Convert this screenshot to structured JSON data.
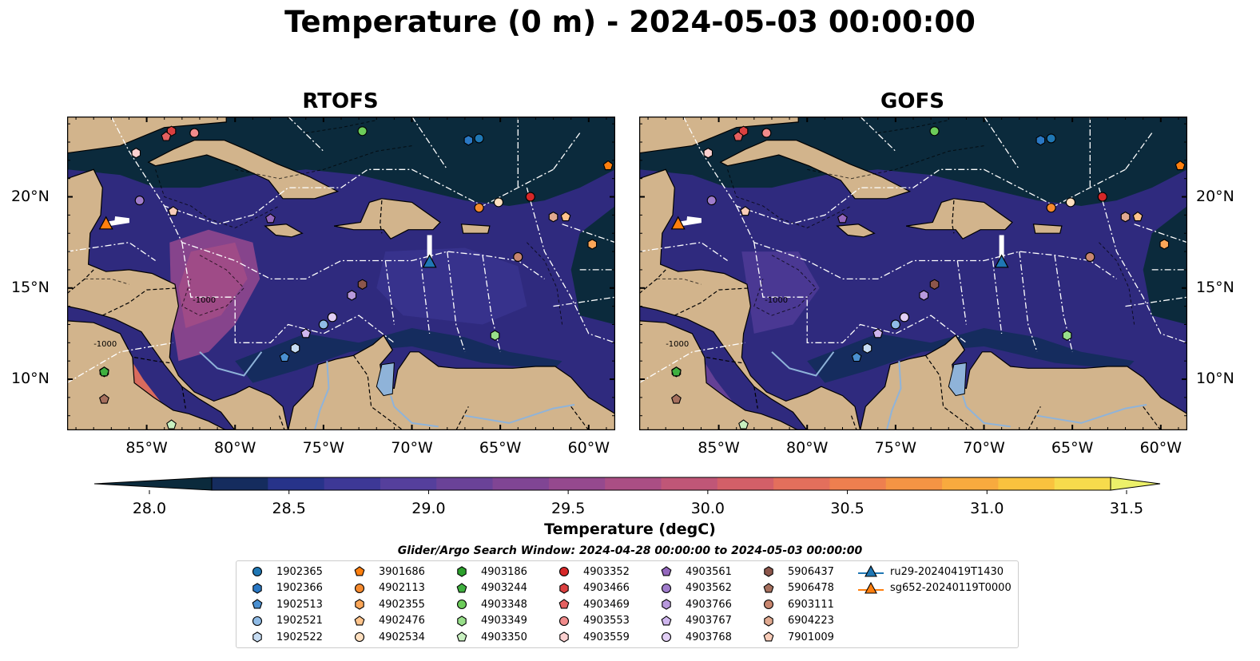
{
  "title": "Temperature (0 m) - 2024-05-03 00:00:00",
  "panels": [
    {
      "title": "RTOFS"
    },
    {
      "title": "GOFS"
    }
  ],
  "map": {
    "lon_ticks": [
      "85°W",
      "80°W",
      "75°W",
      "70°W",
      "65°W",
      "60°W"
    ],
    "lat_ticks": [
      "20°N",
      "15°N",
      "10°N"
    ],
    "contour_labels": [
      "-1000",
      "-1000"
    ],
    "lon_range": [
      -89.5,
      -58.5
    ],
    "lat_range": [
      7.2,
      24.4
    ]
  },
  "colorbar": {
    "label": "Temperature (degC)",
    "ticks": [
      "28.0",
      "28.5",
      "29.0",
      "29.5",
      "30.0",
      "30.5",
      "31.0",
      "31.5"
    ],
    "range": [
      28.0,
      31.5
    ],
    "colors": [
      "#0b2a3c",
      "#152c5e",
      "#27338a",
      "#3d3896",
      "#553f9c",
      "#6a4298",
      "#804594",
      "#95498e",
      "#aa4e84",
      "#c05677",
      "#d35f68",
      "#e36f5c",
      "#ee7f4f",
      "#f49444",
      "#f8aa3e",
      "#f9c23e",
      "#f7db4c",
      "#ecf06a"
    ]
  },
  "search_window": "Glider/Argo Search Window: 2024-04-28 00:00:00 to 2024-05-03 00:00:00",
  "legend": [
    {
      "label": "1902365",
      "marker": "circle",
      "color": "#1f77b4"
    },
    {
      "label": "1902366",
      "marker": "hexagon",
      "color": "#2a78c4"
    },
    {
      "label": "1902513",
      "marker": "pentagon",
      "color": "#4a8fd0"
    },
    {
      "label": "1902521",
      "marker": "circle",
      "color": "#8fbbe6"
    },
    {
      "label": "1902522",
      "marker": "hexagon",
      "color": "#c6dcf2"
    },
    {
      "label": "3901686",
      "marker": "pentagon",
      "color": "#ff7f0e"
    },
    {
      "label": "4902113",
      "marker": "circle",
      "color": "#f58a2e"
    },
    {
      "label": "4902355",
      "marker": "hexagon",
      "color": "#fba658"
    },
    {
      "label": "4902476",
      "marker": "pentagon",
      "color": "#ffc48c"
    },
    {
      "label": "4902534",
      "marker": "circle",
      "color": "#ffe0c0"
    },
    {
      "label": "4903186",
      "marker": "hexagon",
      "color": "#2ca02c"
    },
    {
      "label": "4903244",
      "marker": "pentagon",
      "color": "#3fb03f"
    },
    {
      "label": "4903348",
      "marker": "circle",
      "color": "#6ccc5a"
    },
    {
      "label": "4903349",
      "marker": "hexagon",
      "color": "#98df8a"
    },
    {
      "label": "4903350",
      "marker": "pentagon",
      "color": "#c8f0c0"
    },
    {
      "label": "4903352",
      "marker": "circle",
      "color": "#d62728"
    },
    {
      "label": "4903466",
      "marker": "hexagon",
      "color": "#db4040"
    },
    {
      "label": "4903469",
      "marker": "pentagon",
      "color": "#e56060"
    },
    {
      "label": "4903553",
      "marker": "circle",
      "color": "#f08b8b"
    },
    {
      "label": "4903559",
      "marker": "hexagon",
      "color": "#fbd0d0"
    },
    {
      "label": "4903561",
      "marker": "pentagon",
      "color": "#9467bd"
    },
    {
      "label": "4903562",
      "marker": "circle",
      "color": "#a07ccc"
    },
    {
      "label": "4903766",
      "marker": "hexagon",
      "color": "#b899dd"
    },
    {
      "label": "4903767",
      "marker": "pentagon",
      "color": "#cfb6ee"
    },
    {
      "label": "4903768",
      "marker": "circle",
      "color": "#e2cff5"
    },
    {
      "label": "5906437",
      "marker": "hexagon",
      "color": "#8c564b"
    },
    {
      "label": "5906478",
      "marker": "pentagon",
      "color": "#a6705e"
    },
    {
      "label": "6903111",
      "marker": "circle",
      "color": "#c8866f"
    },
    {
      "label": "6904223",
      "marker": "hexagon",
      "color": "#e0a990"
    },
    {
      "label": "7901009",
      "marker": "pentagon",
      "color": "#f8ccb8"
    },
    {
      "label": "ru29-20240419T1430",
      "marker": "triangle-line",
      "color": "#1f77b4"
    },
    {
      "label": "sg652-20240119T0000",
      "marker": "triangle-line",
      "color": "#ff7f0e"
    }
  ],
  "floats": [
    {
      "id": "1902365",
      "lon": -66.2,
      "lat": 23.2
    },
    {
      "id": "1902366",
      "lon": -66.8,
      "lat": 23.1
    },
    {
      "id": "1902513",
      "lon": -77.2,
      "lat": 11.2
    },
    {
      "id": "1902521",
      "lon": -75.0,
      "lat": 13.0
    },
    {
      "id": "1902522",
      "lon": -76.6,
      "lat": 11.7
    },
    {
      "id": "3901686",
      "lon": -58.9,
      "lat": 21.7
    },
    {
      "id": "4902113",
      "lon": -66.2,
      "lat": 19.4
    },
    {
      "id": "4902355",
      "lon": -59.8,
      "lat": 17.4
    },
    {
      "id": "4902476",
      "lon": -61.3,
      "lat": 18.9
    },
    {
      "id": "4902534",
      "lon": -65.1,
      "lat": 19.7
    },
    {
      "id": "4903186",
      "lon": -87.4,
      "lat": 10.4
    },
    {
      "id": "4903244",
      "lon": -87.4,
      "lat": 10.4
    },
    {
      "id": "4903348",
      "lon": -72.8,
      "lat": 23.6
    },
    {
      "id": "4903349",
      "lon": -65.3,
      "lat": 12.4
    },
    {
      "id": "4903350",
      "lon": -83.6,
      "lat": 7.5
    },
    {
      "id": "4903352",
      "lon": -63.3,
      "lat": 20.0
    },
    {
      "id": "4903466",
      "lon": -83.6,
      "lat": 23.6
    },
    {
      "id": "4903469",
      "lon": -83.9,
      "lat": 23.3
    },
    {
      "id": "4903553",
      "lon": -82.3,
      "lat": 23.5
    },
    {
      "id": "4903559",
      "lon": -85.6,
      "lat": 22.4
    },
    {
      "id": "4903561",
      "lon": -78.0,
      "lat": 18.8
    },
    {
      "id": "4903562",
      "lon": -85.4,
      "lat": 19.8
    },
    {
      "id": "4903766",
      "lon": -73.4,
      "lat": 14.6
    },
    {
      "id": "4903767",
      "lon": -76.0,
      "lat": 12.5
    },
    {
      "id": "4903768",
      "lon": -74.5,
      "lat": 13.4
    },
    {
      "id": "5906437",
      "lon": -72.8,
      "lat": 15.2
    },
    {
      "id": "5906478",
      "lon": -87.4,
      "lat": 8.9
    },
    {
      "id": "6903111",
      "lon": -64.0,
      "lat": 16.7
    },
    {
      "id": "6904223",
      "lon": -62.0,
      "lat": 18.9
    },
    {
      "id": "7901009",
      "lon": -83.5,
      "lat": 19.2
    }
  ],
  "gliders": [
    {
      "id": "ru29-20240419T1430",
      "track": [
        [
          -69.0,
          17.9
        ],
        [
          -69.0,
          16.4
        ]
      ]
    },
    {
      "id": "sg652-20240119T0000",
      "track": [
        [
          -86.8,
          18.8
        ],
        [
          -86.0,
          18.7
        ],
        [
          -87.3,
          18.5
        ]
      ]
    }
  ]
}
